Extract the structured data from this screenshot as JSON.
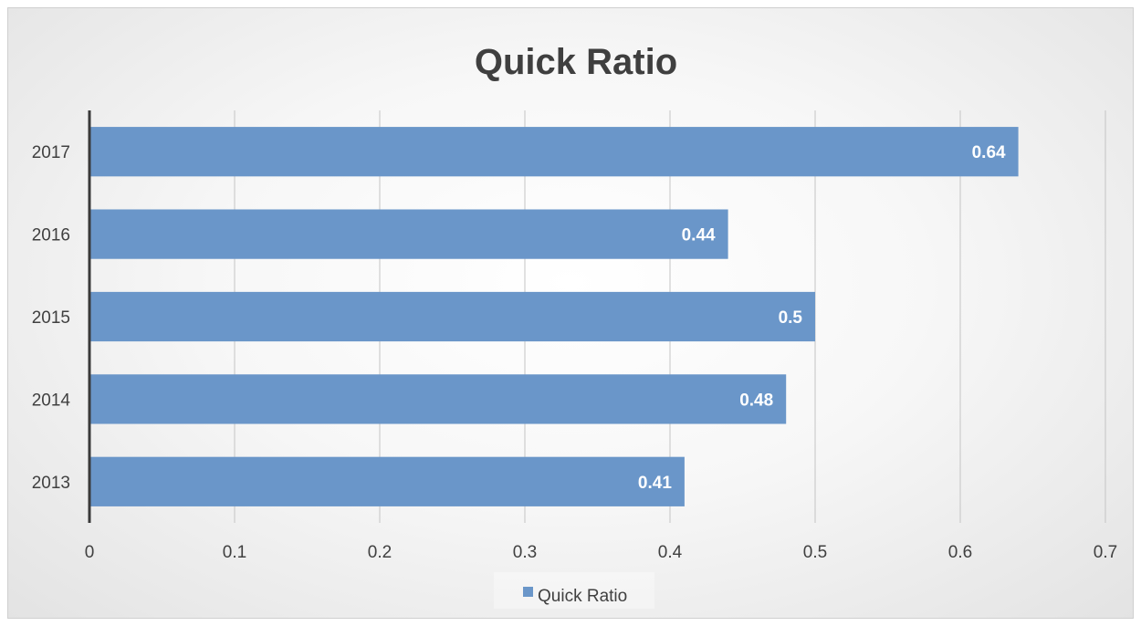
{
  "chart_data": {
    "type": "bar",
    "orientation": "horizontal",
    "title": "Quick Ratio",
    "categories": [
      "2013",
      "2014",
      "2015",
      "2016",
      "2017"
    ],
    "series": [
      {
        "name": "Quick Ratio",
        "values": [
          0.41,
          0.48,
          0.5,
          0.44,
          0.64
        ],
        "color": "#6a96c9"
      }
    ],
    "data_labels": [
      "0.41",
      "0.48",
      "0.5",
      "0.44",
      "0.64"
    ],
    "xlim": [
      0,
      0.7
    ],
    "x_ticks": [
      "0",
      "0.1",
      "0.2",
      "0.3",
      "0.4",
      "0.5",
      "0.6",
      "0.7"
    ],
    "grid": true,
    "legend_position": "bottom"
  }
}
